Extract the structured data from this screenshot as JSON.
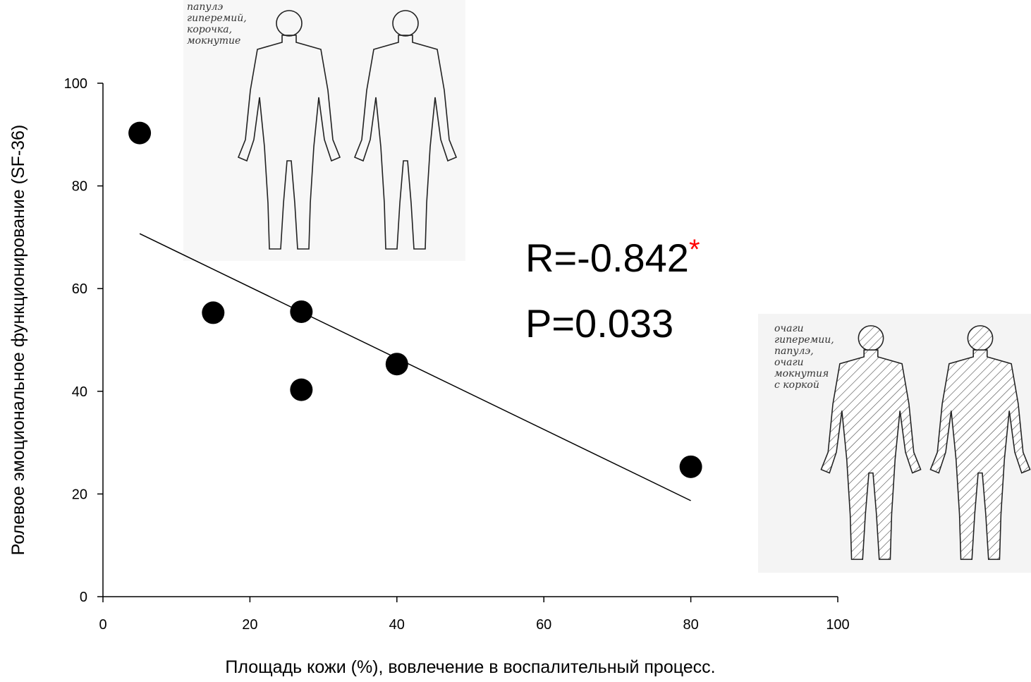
{
  "chart_data": {
    "type": "scatter",
    "x": [
      5,
      15,
      27,
      27,
      40,
      80
    ],
    "values": [
      90.3,
      55.3,
      55.5,
      40.3,
      45.3,
      25.3
    ],
    "color": "#000000",
    "trendline": {
      "x": [
        5,
        80
      ],
      "y": [
        70.7,
        18.7
      ],
      "color": "#000000"
    },
    "xlim": [
      0,
      100
    ],
    "ylim": [
      0,
      100
    ],
    "xticks": [
      0,
      20,
      40,
      60,
      80,
      100
    ],
    "yticks": [
      0,
      20,
      40,
      60,
      80,
      100
    ],
    "xlabel": "Площадь кожи (%),  вовлечение в воспалительный процесс.",
    "ylabel": "Ролевое эмоциональное функционирование (SF-36)",
    "annotations": {
      "r": "R=-0.842",
      "significance": "*",
      "significance_color": "#ff0000",
      "p": "P=0.033"
    },
    "sketch_notes": [
      [
        "папулэ",
        "гиперемий,",
        "корочка,",
        "мокнутие"
      ],
      [
        "очаги",
        "гиперемии,",
        "папулэ,",
        "очаги",
        "мокнутия",
        "с коркой"
      ]
    ]
  }
}
